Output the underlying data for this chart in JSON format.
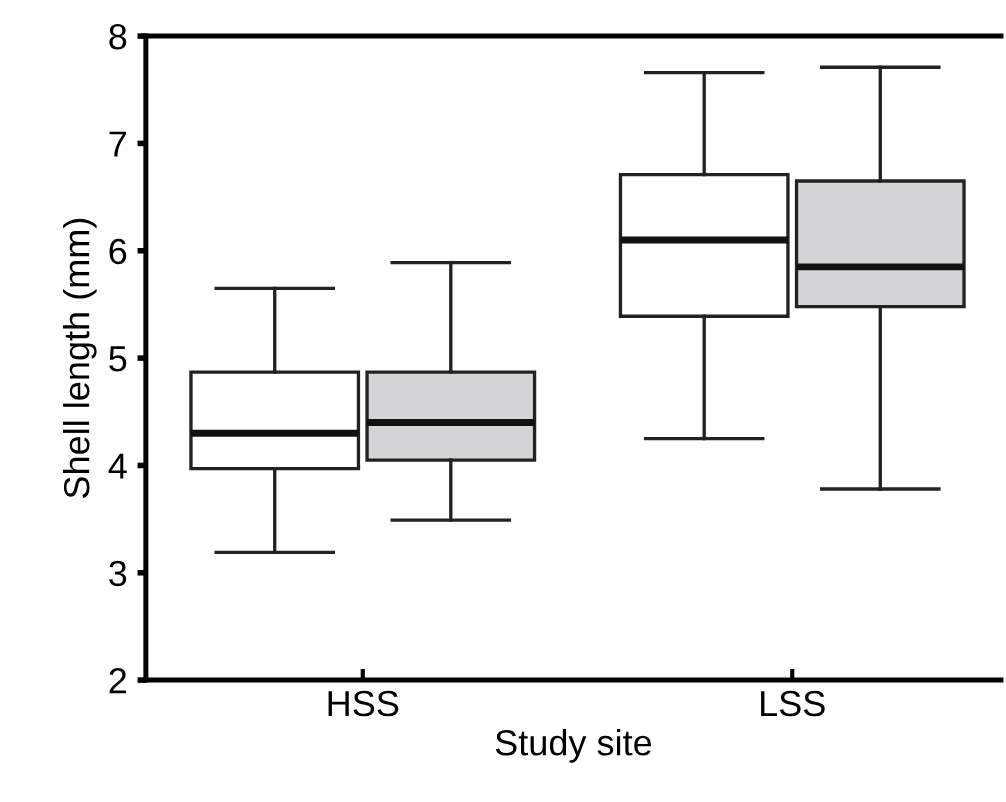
{
  "chart_data": {
    "type": "box",
    "xlabel": "Study site",
    "ylabel": "Shell length (mm)",
    "categories": [
      "HSS",
      "LSS"
    ],
    "series": [
      {
        "color": "#ffffff",
        "boxes": [
          {
            "low": 3.19,
            "q1": 3.97,
            "median": 4.3,
            "q3": 4.87,
            "high": 5.65
          },
          {
            "low": 4.25,
            "q1": 5.39,
            "median": 6.1,
            "q3": 6.71,
            "high": 7.66
          }
        ]
      },
      {
        "color": "#d3d4d6",
        "boxes": [
          {
            "low": 3.49,
            "q1": 4.05,
            "median": 4.4,
            "q3": 4.87,
            "high": 5.89
          },
          {
            "low": 3.78,
            "q1": 5.48,
            "median": 5.85,
            "q3": 6.65,
            "high": 7.71
          }
        ]
      }
    ],
    "ylim": [
      2,
      8
    ],
    "yticks": [
      2,
      3,
      4,
      5,
      6,
      7,
      8
    ],
    "grid": false,
    "legend": false
  }
}
